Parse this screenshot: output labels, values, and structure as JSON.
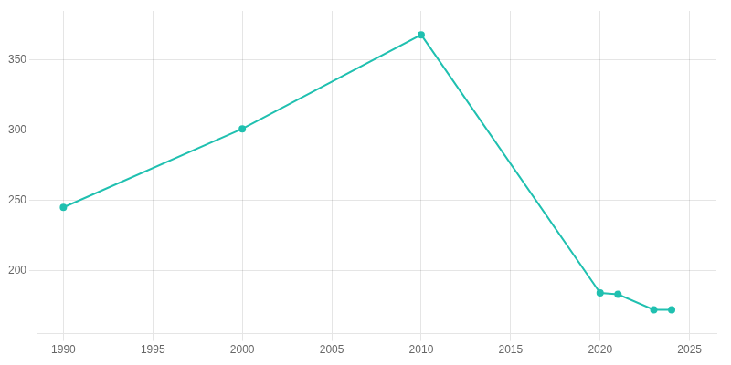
{
  "chart_data": {
    "type": "line",
    "x": [
      1990,
      2000,
      2010,
      2020,
      2021,
      2023,
      2024
    ],
    "values": [
      245,
      301,
      368,
      184,
      183,
      172,
      172
    ],
    "color": "#20c0b0",
    "marker": "o",
    "xlim": [
      1988.5,
      2026.5
    ],
    "ylim": [
      155,
      385
    ],
    "xticks": [
      1990,
      1995,
      2000,
      2005,
      2010,
      2015,
      2020,
      2025
    ],
    "yticks": [
      200,
      250,
      300,
      350
    ],
    "grid": true
  }
}
